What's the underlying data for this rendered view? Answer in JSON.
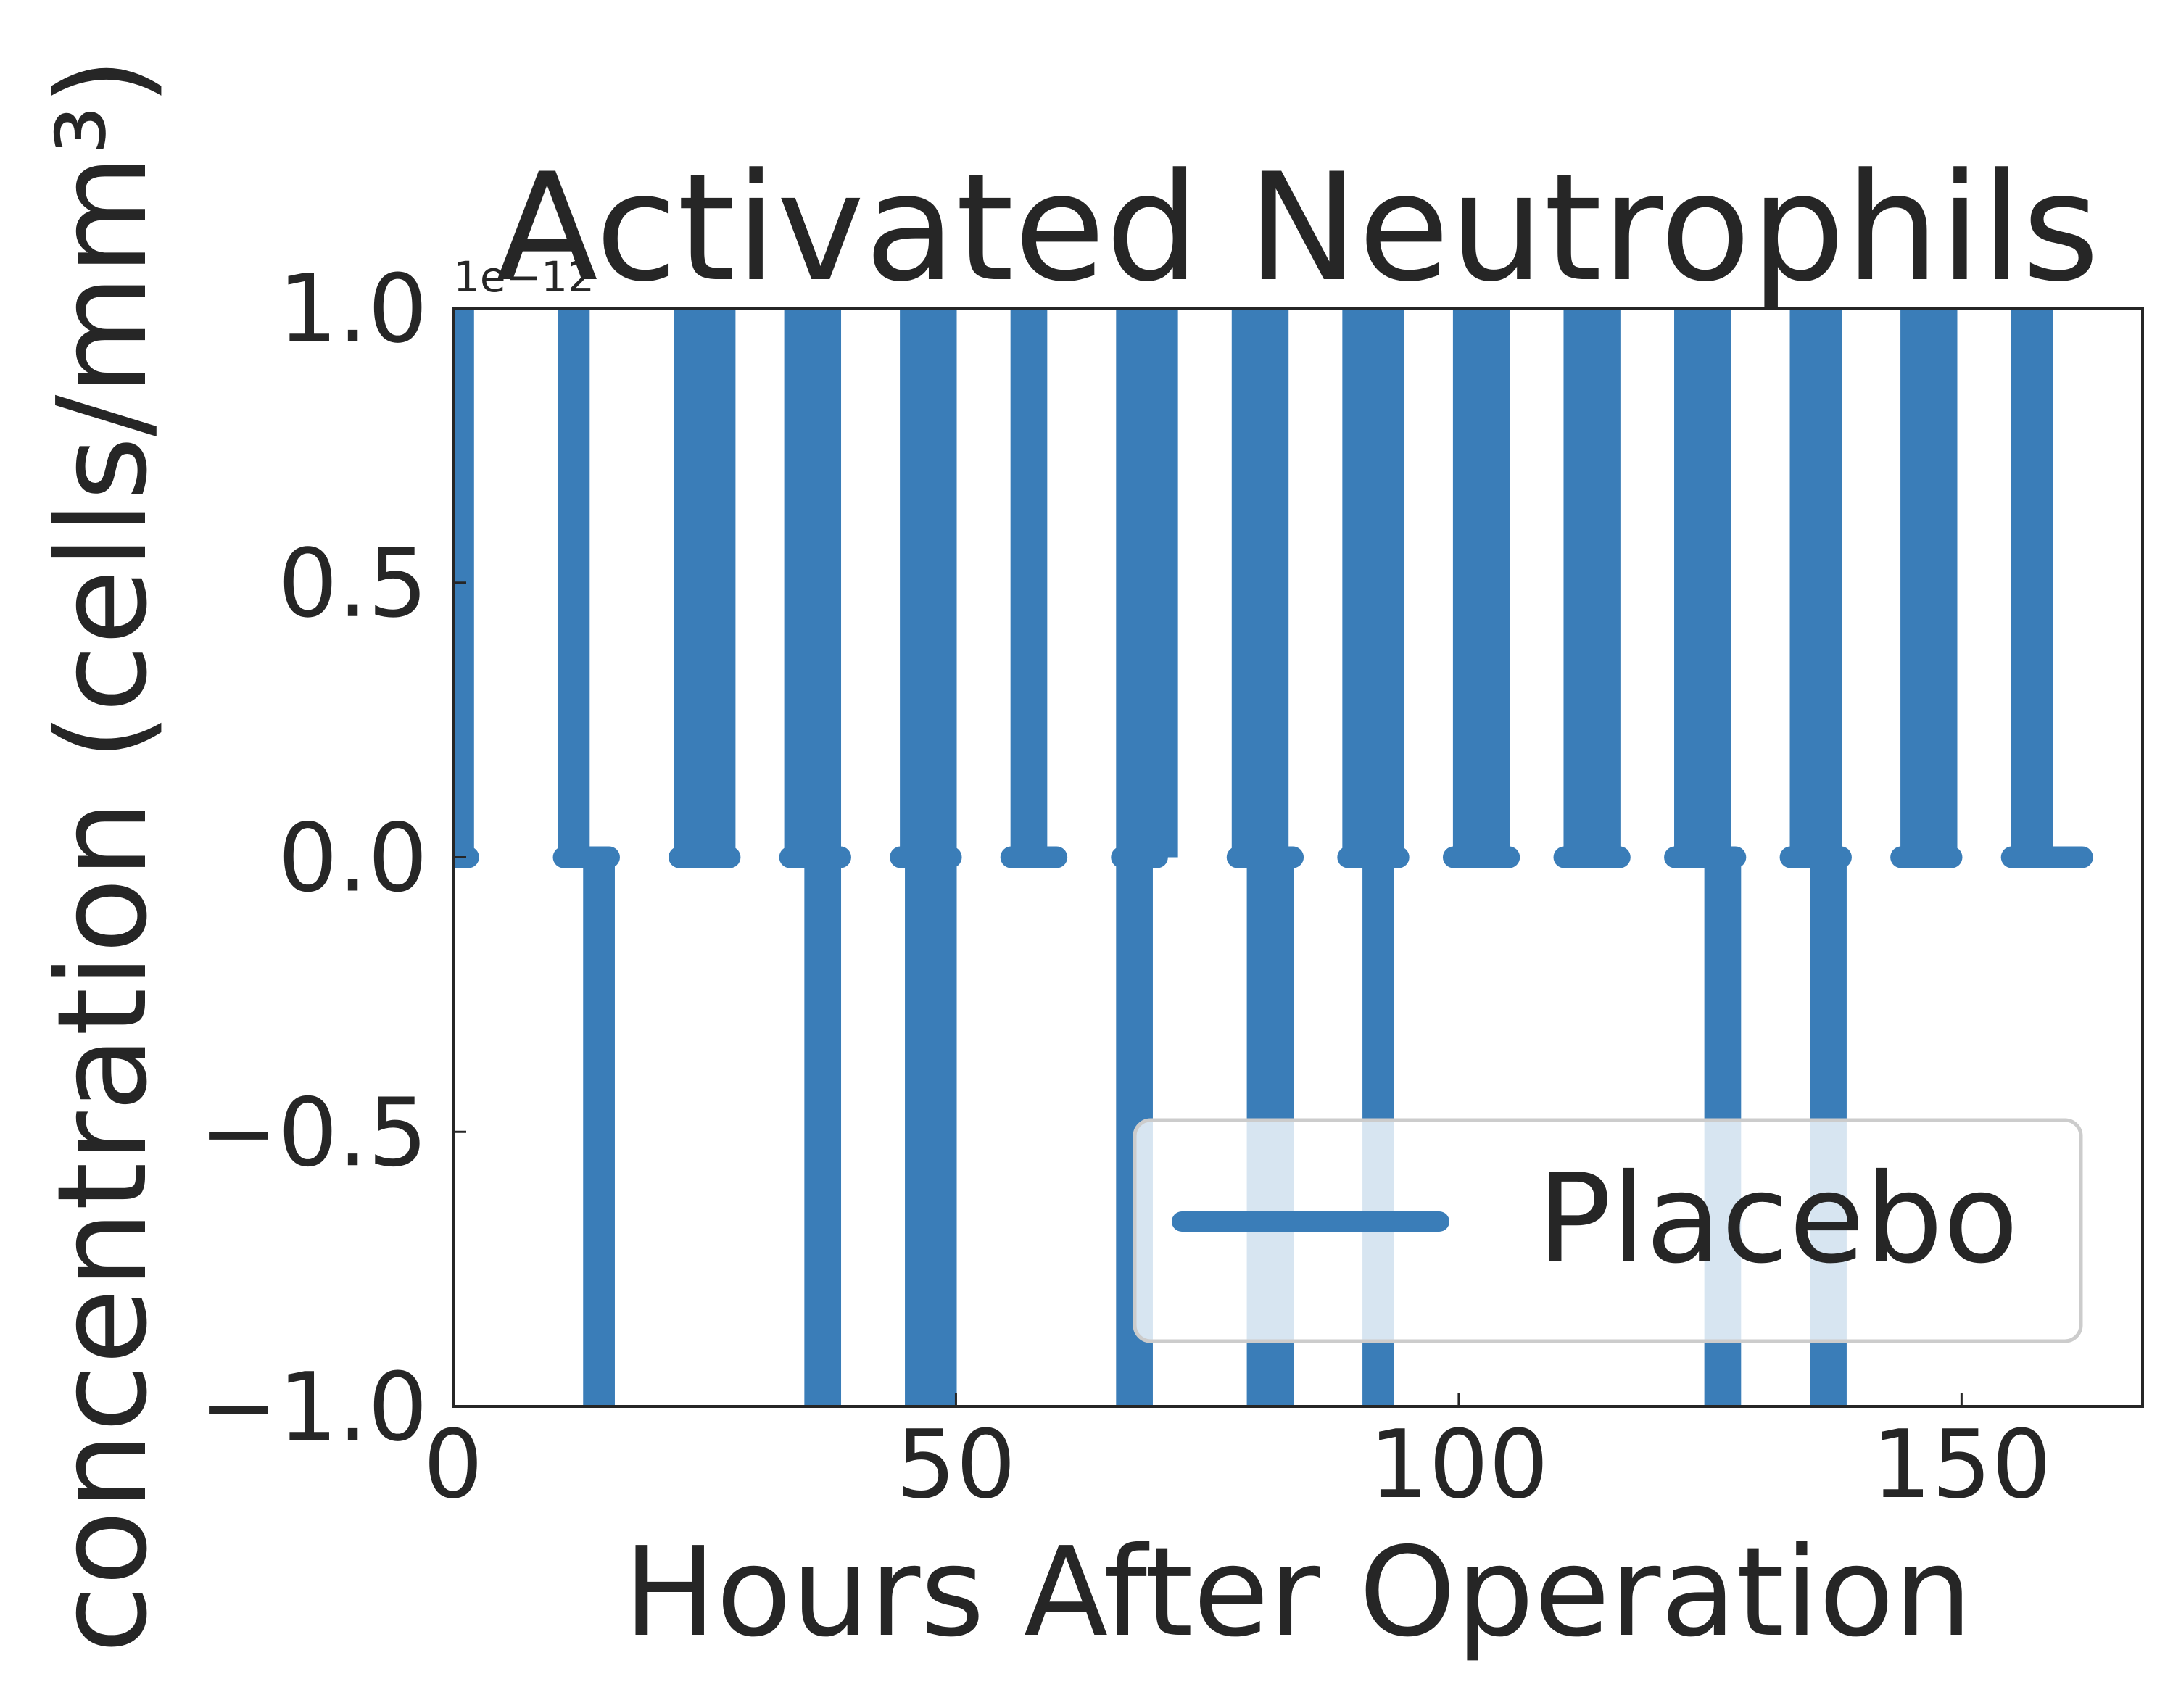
{
  "chart_data": {
    "type": "line",
    "title": "Activated Neutrophils",
    "xlabel": "Hours After Operation",
    "ylabel": "concentration (cells/mm³)",
    "y_offset_label": "1e−12",
    "y_scale_factor": 1e-12,
    "xlim": [
      0,
      168
    ],
    "ylim": [
      -1.0,
      1.0
    ],
    "x_ticks": [
      0,
      50,
      100,
      150
    ],
    "x_tick_labels": [
      "0",
      "50",
      "100",
      "150"
    ],
    "y_ticks": [
      -1.0,
      -0.5,
      0.0,
      0.5,
      1.0
    ],
    "y_tick_labels": [
      "−1.0",
      "−0.5",
      "0.0",
      "0.5",
      "1.0"
    ],
    "grid": false,
    "legend_position": "lower-right",
    "series": [
      {
        "name": "Placebo",
        "color": "#3a7db8",
        "baseline": 0.0,
        "spikes_up": [
          {
            "x0": 0.3,
            "x1": 1.5
          },
          {
            "x0": 11.0,
            "x1": 13.0
          },
          {
            "x0": 22.5,
            "x1": 27.5
          },
          {
            "x0": 33.5,
            "x1": 38.0
          },
          {
            "x0": 45.0,
            "x1": 49.5
          },
          {
            "x0": 56.0,
            "x1": 58.5
          },
          {
            "x0": 66.5,
            "x1": 71.5
          },
          {
            "x0": 78.0,
            "x1": 82.5
          },
          {
            "x0": 89.0,
            "x1": 94.0
          },
          {
            "x0": 100.0,
            "x1": 104.5
          },
          {
            "x0": 111.0,
            "x1": 115.5
          },
          {
            "x0": 122.0,
            "x1": 126.5
          },
          {
            "x0": 133.5,
            "x1": 137.5
          },
          {
            "x0": 144.5,
            "x1": 149.0
          },
          {
            "x0": 155.5,
            "x1": 158.5
          }
        ],
        "spikes_down": [
          {
            "x0": 13.5,
            "x1": 15.5
          },
          {
            "x0": 35.5,
            "x1": 38.0
          },
          {
            "x0": 45.5,
            "x1": 49.5
          },
          {
            "x0": 66.5,
            "x1": 69.0
          },
          {
            "x0": 79.5,
            "x1": 83.0
          },
          {
            "x0": 91.0,
            "x1": 93.0
          },
          {
            "x0": 125.0,
            "x1": 127.5
          },
          {
            "x0": 135.5,
            "x1": 138.0
          }
        ],
        "baseline_segments": [
          [
            0,
            1.5
          ],
          [
            11.0,
            15.5
          ],
          [
            22.5,
            27.5
          ],
          [
            33.5,
            38.5
          ],
          [
            44.5,
            49.5
          ],
          [
            55.5,
            60.0
          ],
          [
            66.5,
            70.0
          ],
          [
            78.0,
            83.5
          ],
          [
            89.0,
            94.0
          ],
          [
            99.5,
            105.0
          ],
          [
            110.5,
            116.0
          ],
          [
            121.5,
            127.5
          ],
          [
            133.0,
            138.0
          ],
          [
            144.0,
            149.0
          ],
          [
            155.0,
            162.0
          ]
        ]
      }
    ]
  }
}
